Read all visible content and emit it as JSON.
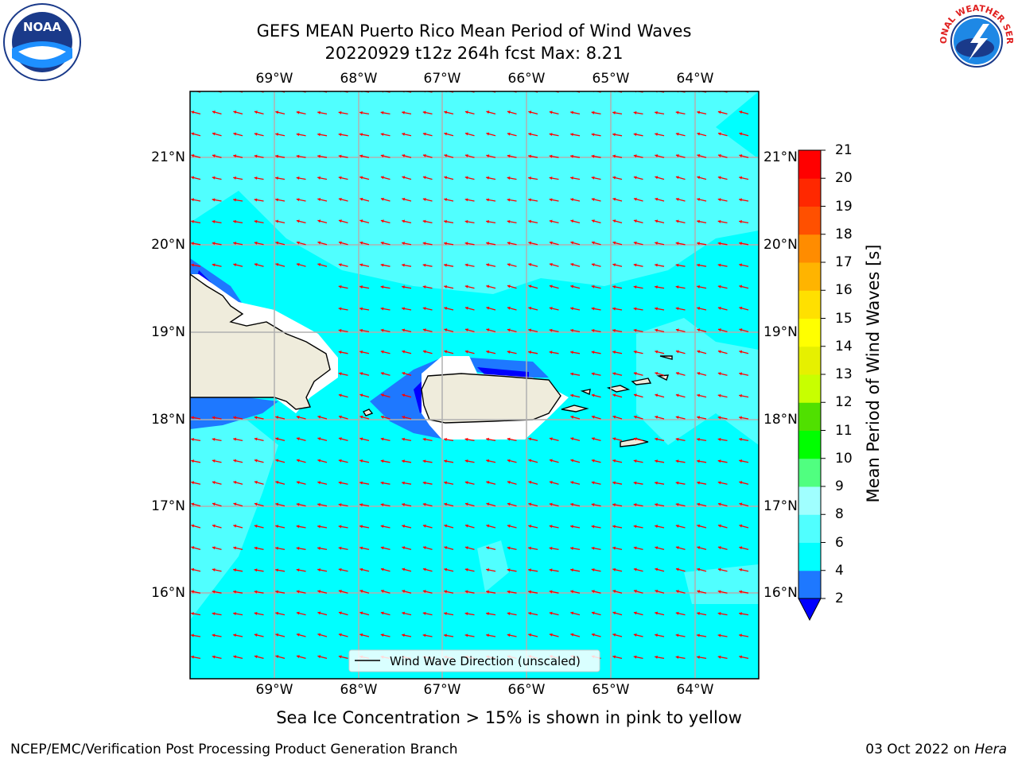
{
  "title": {
    "line1": "GEFS MEAN Puerto Rico Mean Period of Wind Waves",
    "line2": "20220929 t12z 264h fcst   Max: 8.21"
  },
  "axes": {
    "lon_labels": [
      "69°W",
      "68°W",
      "67°W",
      "66°W",
      "65°W",
      "64°W"
    ],
    "lat_labels": [
      "21°N",
      "20°N",
      "19°N",
      "18°N",
      "17°N",
      "16°N"
    ]
  },
  "colorbar": {
    "label": "Mean Period of Wind Waves [s]",
    "ticks": [
      "2",
      "4",
      "6",
      "8",
      "9",
      "10",
      "11",
      "12",
      "13",
      "14",
      "15",
      "16",
      "17",
      "18",
      "19",
      "20",
      "21"
    ],
    "colors": [
      "#0000ff",
      "#1e78ff",
      "#00ffff",
      "#50ffff",
      "#a0ffff",
      "#50ff80",
      "#00ff00",
      "#50e000",
      "#c8ff00",
      "#e6f000",
      "#ffff00",
      "#ffe000",
      "#ffb400",
      "#ff8c00",
      "#ff5000",
      "#ff2800",
      "#ff0000"
    ]
  },
  "legend": {
    "label": "Wind Wave Direction (unscaled)"
  },
  "note": "Sea Ice Concentration > 15% is shown in pink to yellow",
  "footer": {
    "left": "NCEP/EMC/Verification Post Processing Product Generation Branch",
    "right_date": "03 Oct 2022 on",
    "right_host": "Hera"
  },
  "logos": {
    "noaa_text": "NOAA",
    "nws_text": "NATIONAL WEATHER SERVICE"
  },
  "colors": {
    "ocean": "#00ffff",
    "ocean_light": "#50ffff",
    "land": "#efecdc",
    "arrow": "#ff0000",
    "grid": "#b0b0b0"
  }
}
